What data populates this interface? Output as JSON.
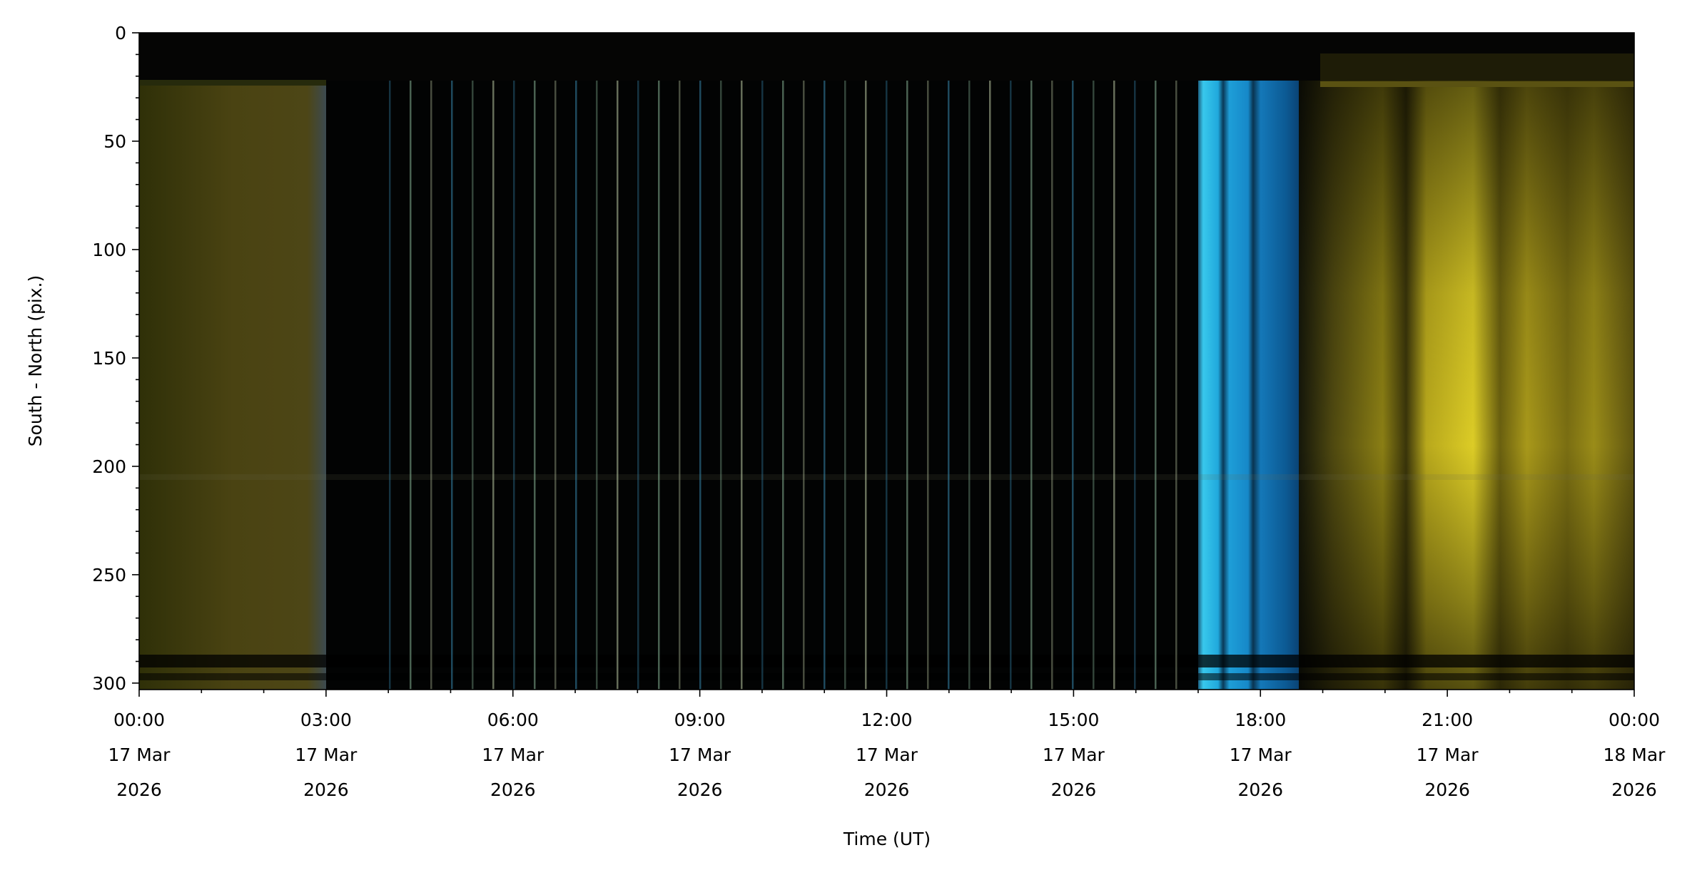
{
  "chart_data": {
    "type": "image",
    "xlabel": "Time (UT)",
    "ylabel": "South - North (pix.)",
    "xlim": [
      "2026-03-17T00:00",
      "2026-03-18T00:00"
    ],
    "ylim": [
      303,
      0
    ],
    "yticks": [
      0,
      50,
      100,
      150,
      200,
      250,
      300
    ],
    "yminorticks": [
      10,
      20,
      30,
      40,
      60,
      70,
      80,
      90,
      110,
      120,
      130,
      140,
      160,
      170,
      180,
      190,
      210,
      220,
      230,
      240,
      260,
      270,
      280,
      290
    ],
    "xticks": [
      {
        "value": "2026-03-17T00:00",
        "label": [
          "00:00",
          "17 Mar",
          "2026"
        ]
      },
      {
        "value": "2026-03-17T03:00",
        "label": [
          "03:00",
          "17 Mar",
          "2026"
        ]
      },
      {
        "value": "2026-03-17T06:00",
        "label": [
          "06:00",
          "17 Mar",
          "2026"
        ]
      },
      {
        "value": "2026-03-17T09:00",
        "label": [
          "09:00",
          "17 Mar",
          "2026"
        ]
      },
      {
        "value": "2026-03-17T12:00",
        "label": [
          "12:00",
          "17 Mar",
          "2026"
        ]
      },
      {
        "value": "2026-03-17T15:00",
        "label": [
          "15:00",
          "17 Mar",
          "2026"
        ]
      },
      {
        "value": "2026-03-17T18:00",
        "label": [
          "18:00",
          "17 Mar",
          "2026"
        ]
      },
      {
        "value": "2026-03-17T21:00",
        "label": [
          "21:00",
          "17 Mar",
          "2026"
        ]
      },
      {
        "value": "2026-03-18T00:00",
        "label": [
          "00:00",
          "18 Mar",
          "2026"
        ]
      }
    ],
    "xminorticks": [
      "2026-03-17T01:00",
      "2026-03-17T02:00",
      "2026-03-17T04:00",
      "2026-03-17T05:00",
      "2026-03-17T07:00",
      "2026-03-17T08:00",
      "2026-03-17T10:00",
      "2026-03-17T11:00",
      "2026-03-17T13:00",
      "2026-03-17T14:00",
      "2026-03-17T16:00",
      "2026-03-17T17:00",
      "2026-03-17T19:00",
      "2026-03-17T20:00",
      "2026-03-17T22:00",
      "2026-03-17T23:00"
    ]
  }
}
